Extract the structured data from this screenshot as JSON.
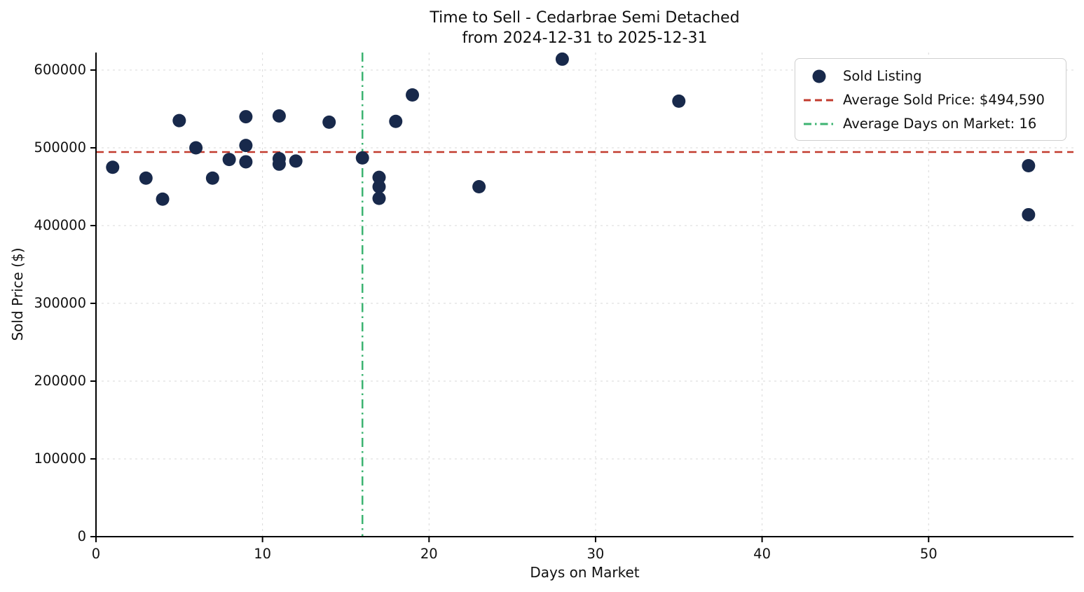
{
  "chart_data": {
    "type": "scatter",
    "title": "Time to Sell - Cedarbrae Semi Detached",
    "subtitle": "from 2024-12-31 to 2025-12-31",
    "xlabel": "Days on Market",
    "ylabel": "Sold Price ($)",
    "xlim": [
      0,
      58.7
    ],
    "ylim": [
      0,
      622500
    ],
    "xticks": [
      0,
      10,
      20,
      30,
      40,
      50
    ],
    "yticks": [
      0,
      100000,
      200000,
      300000,
      400000,
      500000,
      600000
    ],
    "grid": true,
    "legend_position": "upper right",
    "background": "#ffffff",
    "series": [
      {
        "name": "Sold Listing",
        "type": "scatter",
        "color": "#18294B",
        "points": [
          [
            1,
            475000
          ],
          [
            3,
            461000
          ],
          [
            4,
            434000
          ],
          [
            5,
            535000
          ],
          [
            6,
            500000
          ],
          [
            7,
            461000
          ],
          [
            8,
            485000
          ],
          [
            9,
            540000
          ],
          [
            9,
            503000
          ],
          [
            9,
            482000
          ],
          [
            11,
            541000
          ],
          [
            11,
            486000
          ],
          [
            11,
            479000
          ],
          [
            12,
            483000
          ],
          [
            14,
            533000
          ],
          [
            16,
            487000
          ],
          [
            17,
            462000
          ],
          [
            17,
            450000
          ],
          [
            17,
            435000
          ],
          [
            18,
            534000
          ],
          [
            19,
            568000
          ],
          [
            23,
            450000
          ],
          [
            28,
            614000
          ],
          [
            35,
            560000
          ],
          [
            56,
            477000
          ],
          [
            56,
            414000
          ]
        ]
      }
    ],
    "avg_sold_price": {
      "value": 494590,
      "label": "Average Sold Price: $494,590",
      "color": "#C23B2E",
      "style": "dashed"
    },
    "avg_days_on_market": {
      "value": 16,
      "label": "Average Days on Market: 16",
      "color": "#3CB371",
      "style": "dashdot"
    },
    "legend": [
      {
        "label": "Sold Listing",
        "marker": "dot",
        "color": "#18294B"
      },
      {
        "label": "Average Sold Price: $494,590",
        "marker": "dashed-line",
        "color": "#C23B2E"
      },
      {
        "label": "Average Days on Market: 16",
        "marker": "dashdot-line",
        "color": "#3CB371"
      }
    ]
  }
}
